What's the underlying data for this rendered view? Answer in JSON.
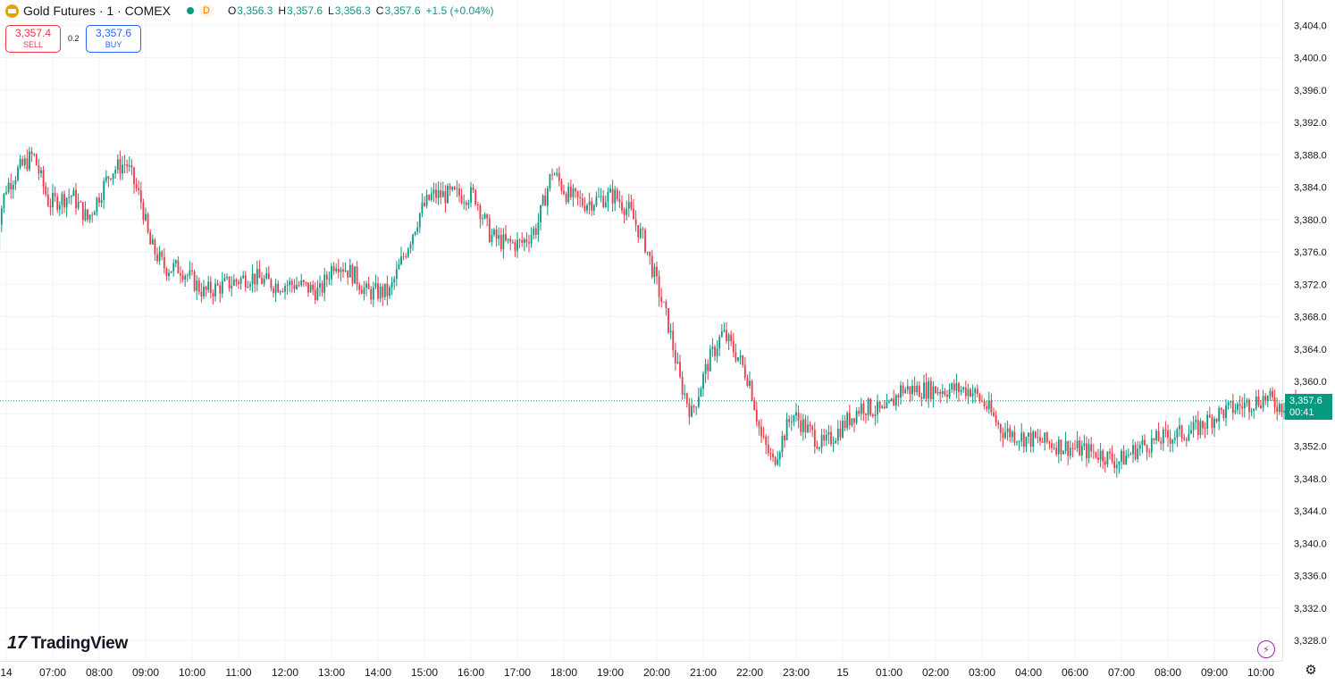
{
  "header": {
    "symbol_title": "Gold Futures · 1 · COMEX",
    "period_badge": "D",
    "ohlc": [
      {
        "key": "O",
        "value": "3,356.3"
      },
      {
        "key": "H",
        "value": "3,357.6"
      },
      {
        "key": "L",
        "value": "3,356.3"
      },
      {
        "key": "C",
        "value": "3,357.6"
      }
    ],
    "change": "+1.5 (+0.04%)"
  },
  "trade": {
    "sell_price": "3,357.4",
    "sell_label": "SELL",
    "spread": "0.2",
    "buy_price": "3,357.6",
    "buy_label": "BUY"
  },
  "price_tag": {
    "price": "3,357.6",
    "countdown": "00:41"
  },
  "brand": "TradingView",
  "icons": [
    "gold-bars-icon",
    "market-status-dot-icon",
    "tradingview-logo-icon",
    "lightning-icon",
    "gear-icon"
  ],
  "colors": {
    "up": "#089981",
    "down": "#f23645",
    "grid": "#f0f3fa",
    "sell": "#f23645",
    "buy": "#2962ff",
    "alert": "#9c27b0"
  },
  "chart_data": {
    "type": "candlestick",
    "interval": "1 minute",
    "title": "Gold Futures · 1 · COMEX",
    "y_axis_ticks": [
      "3,328.0",
      "3,332.0",
      "3,336.0",
      "3,340.0",
      "3,344.0",
      "3,348.0",
      "3,352.0",
      "3,356.0",
      "3,360.0",
      "3,364.0",
      "3,368.0",
      "3,372.0",
      "3,376.0",
      "3,380.0",
      "3,384.0",
      "3,388.0",
      "3,392.0",
      "3,396.0",
      "3,400.0",
      "3,404.0"
    ],
    "ylim": [
      3326,
      3406
    ],
    "x_axis_ticks": [
      "14",
      "07:00",
      "08:00",
      "09:00",
      "10:00",
      "11:00",
      "12:00",
      "13:00",
      "14:00",
      "15:00",
      "16:00",
      "17:00",
      "18:00",
      "19:00",
      "20:00",
      "21:00",
      "22:00",
      "23:00",
      "15",
      "01:00",
      "02:00",
      "03:00",
      "04:00",
      "06:00",
      "07:00",
      "08:00",
      "09:00",
      "10:00"
    ],
    "grid": true,
    "current_price": 3357.6,
    "price_path": [
      {
        "t": "06:00",
        "price": 3372
      },
      {
        "t": "06:05",
        "price": 3380
      },
      {
        "t": "06:15",
        "price": 3384
      },
      {
        "t": "06:30",
        "price": 3386
      },
      {
        "t": "06:50",
        "price": 3388
      },
      {
        "t": "07:10",
        "price": 3382
      },
      {
        "t": "07:40",
        "price": 3383
      },
      {
        "t": "08:00",
        "price": 3380
      },
      {
        "t": "08:30",
        "price": 3386
      },
      {
        "t": "08:50",
        "price": 3387
      },
      {
        "t": "09:10",
        "price": 3382
      },
      {
        "t": "09:20",
        "price": 3377
      },
      {
        "t": "09:40",
        "price": 3374
      },
      {
        "t": "10:00",
        "price": 3374
      },
      {
        "t": "10:30",
        "price": 3371
      },
      {
        "t": "11:00",
        "price": 3372
      },
      {
        "t": "11:30",
        "price": 3373
      },
      {
        "t": "12:00",
        "price": 3372
      },
      {
        "t": "12:30",
        "price": 3372
      },
      {
        "t": "13:00",
        "price": 3371
      },
      {
        "t": "13:20",
        "price": 3375
      },
      {
        "t": "13:45",
        "price": 3373
      },
      {
        "t": "14:00",
        "price": 3371
      },
      {
        "t": "14:30",
        "price": 3371
      },
      {
        "t": "14:50",
        "price": 3376
      },
      {
        "t": "15:10",
        "price": 3381
      },
      {
        "t": "15:25",
        "price": 3383
      },
      {
        "t": "15:40",
        "price": 3383
      },
      {
        "t": "16:20",
        "price": 3383
      },
      {
        "t": "16:40",
        "price": 3378
      },
      {
        "t": "17:00",
        "price": 3377
      },
      {
        "t": "17:20",
        "price": 3377
      },
      {
        "t": "17:40",
        "price": 3379
      },
      {
        "t": "18:00",
        "price": 3386
      },
      {
        "t": "18:20",
        "price": 3383
      },
      {
        "t": "18:40",
        "price": 3382
      },
      {
        "t": "19:20",
        "price": 3383
      },
      {
        "t": "19:40",
        "price": 3381
      },
      {
        "t": "20:00",
        "price": 3377
      },
      {
        "t": "20:15",
        "price": 3372
      },
      {
        "t": "20:30",
        "price": 3367
      },
      {
        "t": "20:45",
        "price": 3360
      },
      {
        "t": "21:00",
        "price": 3356
      },
      {
        "t": "21:20",
        "price": 3362
      },
      {
        "t": "21:40",
        "price": 3366
      },
      {
        "t": "22:00",
        "price": 3363
      },
      {
        "t": "22:15",
        "price": 3360
      },
      {
        "t": "22:30",
        "price": 3353
      },
      {
        "t": "22:45",
        "price": 3350
      },
      {
        "t": "23:10",
        "price": 3356
      },
      {
        "t": "23:30",
        "price": 3354
      },
      {
        "t": "23:50",
        "price": 3352
      },
      {
        "t": "00:10",
        "price": 3354
      },
      {
        "t": "00:40",
        "price": 3357
      },
      {
        "t": "01:10",
        "price": 3356
      },
      {
        "t": "01:30",
        "price": 3359
      },
      {
        "t": "02:00",
        "price": 3359
      },
      {
        "t": "02:30",
        "price": 3359
      },
      {
        "t": "03:00",
        "price": 3359
      },
      {
        "t": "03:20",
        "price": 3357
      },
      {
        "t": "03:40",
        "price": 3354
      },
      {
        "t": "04:10",
        "price": 3353
      },
      {
        "t": "05:50",
        "price": 3351
      },
      {
        "t": "06:10",
        "price": 3350
      },
      {
        "t": "06:40",
        "price": 3352
      },
      {
        "t": "07:10",
        "price": 3353
      },
      {
        "t": "07:50",
        "price": 3354
      },
      {
        "t": "08:20",
        "price": 3356
      },
      {
        "t": "08:50",
        "price": 3357
      },
      {
        "t": "09:20",
        "price": 3358
      },
      {
        "t": "09:40",
        "price": 3357
      },
      {
        "t": "10:10",
        "price": 3357.6
      }
    ]
  }
}
